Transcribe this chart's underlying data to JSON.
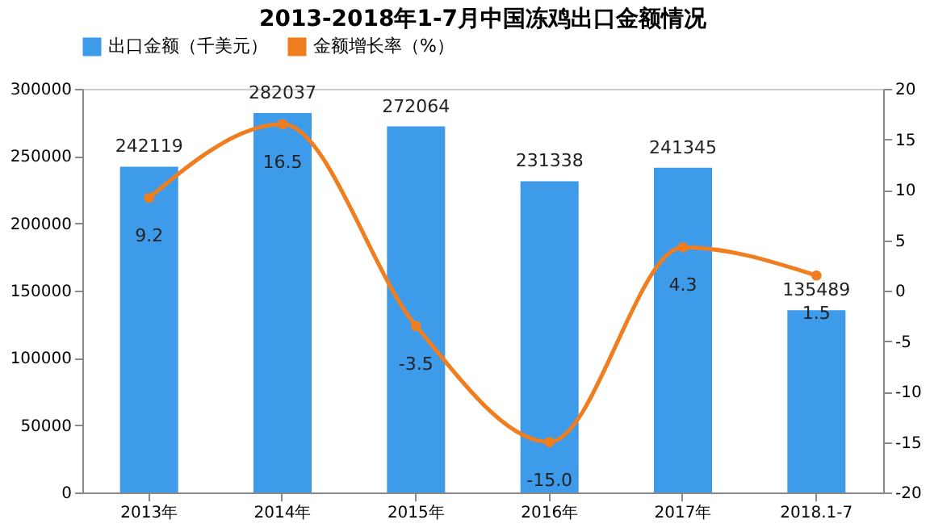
{
  "chart_data": {
    "type": "bar",
    "title": "2013-2018年1-7月中国冻鸡出口金额情况",
    "categories": [
      "2013年",
      "2014年",
      "2015年",
      "2016年",
      "2017年",
      "2018.1-7"
    ],
    "series": [
      {
        "name": "出口金额（千美元）",
        "type": "bar",
        "color": "#3d9be9",
        "values": [
          242119,
          282037,
          272064,
          231338,
          241345,
          135489
        ],
        "value_labels": [
          "242119",
          "282037",
          "272064",
          "231338",
          "241345",
          "135489"
        ]
      },
      {
        "name": "金额增长率（%）",
        "type": "line",
        "axis": "y2",
        "color": "#f07d1e",
        "values": [
          9.2,
          16.5,
          -3.5,
          -15.0,
          4.3,
          1.5
        ],
        "value_labels": [
          "9.2",
          "16.5",
          "-3.5",
          "-15.0",
          "4.3",
          "1.5"
        ]
      }
    ],
    "ylim": [
      0,
      300000
    ],
    "yticks": [
      0,
      50000,
      100000,
      150000,
      200000,
      250000,
      300000
    ],
    "y2lim": [
      -20,
      20
    ],
    "y2ticks": [
      -20,
      -15,
      -10,
      -5,
      0,
      5,
      10,
      15,
      20
    ],
    "legend": "top",
    "marker": "circle",
    "line_style": "solid",
    "grid": false
  }
}
